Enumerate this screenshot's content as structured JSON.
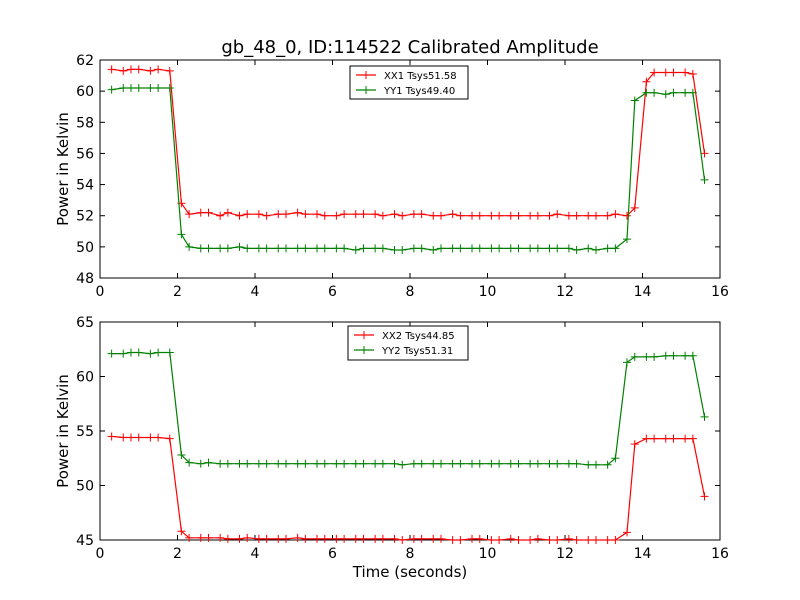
{
  "chart_data": [
    {
      "type": "line",
      "title": "gb_48_0, ID:114522 Calibrated Amplitude",
      "xlabel": "",
      "ylabel": "Power in Kelvin",
      "xlim": [
        0,
        16
      ],
      "ylim": [
        48,
        62
      ],
      "xticks": [
        "0",
        "2",
        "4",
        "6",
        "8",
        "10",
        "12",
        "14",
        "16"
      ],
      "yticks": [
        "48",
        "50",
        "52",
        "54",
        "56",
        "58",
        "60",
        "62"
      ],
      "grid": false,
      "legend_position": "top-center",
      "x": [
        0.3,
        0.6,
        0.8,
        1.0,
        1.3,
        1.5,
        1.8,
        2.1,
        2.3,
        2.6,
        2.8,
        3.1,
        3.3,
        3.6,
        3.8,
        4.1,
        4.3,
        4.6,
        4.8,
        5.1,
        5.3,
        5.6,
        5.8,
        6.1,
        6.3,
        6.6,
        6.8,
        7.1,
        7.3,
        7.6,
        7.8,
        8.1,
        8.3,
        8.6,
        8.8,
        9.1,
        9.3,
        9.6,
        9.8,
        10.1,
        10.3,
        10.6,
        10.8,
        11.1,
        11.3,
        11.6,
        11.8,
        12.1,
        12.3,
        12.6,
        12.8,
        13.1,
        13.3,
        13.6,
        13.8,
        14.1,
        14.3,
        14.6,
        14.8,
        15.1,
        15.3,
        15.6
      ],
      "series": [
        {
          "name": "XX1 Tsys51.58",
          "color": "#ff0000",
          "values": [
            61.4,
            61.3,
            61.4,
            61.4,
            61.3,
            61.4,
            61.3,
            52.8,
            52.1,
            52.2,
            52.2,
            52.0,
            52.2,
            52.0,
            52.1,
            52.1,
            52.0,
            52.1,
            52.1,
            52.2,
            52.1,
            52.1,
            52.0,
            52.0,
            52.1,
            52.1,
            52.1,
            52.1,
            52.0,
            52.1,
            52.0,
            52.1,
            52.1,
            52.0,
            52.0,
            52.1,
            52.0,
            52.0,
            52.0,
            52.0,
            52.0,
            52.0,
            52.0,
            52.0,
            52.0,
            52.0,
            52.1,
            52.0,
            52.0,
            52.0,
            52.0,
            52.0,
            52.1,
            52.0,
            52.5,
            60.6,
            61.2,
            61.2,
            61.2,
            61.2,
            61.1,
            56.0
          ]
        },
        {
          "name": "YY1 Tsys49.40",
          "color": "#008000",
          "values": [
            60.1,
            60.2,
            60.2,
            60.2,
            60.2,
            60.2,
            60.2,
            50.8,
            50.0,
            49.9,
            49.9,
            49.9,
            49.9,
            50.0,
            49.9,
            49.9,
            49.9,
            49.9,
            49.9,
            49.9,
            49.9,
            49.9,
            49.9,
            49.9,
            49.9,
            49.8,
            49.9,
            49.9,
            49.9,
            49.8,
            49.8,
            49.9,
            49.9,
            49.8,
            49.9,
            49.9,
            49.9,
            49.9,
            49.9,
            49.9,
            49.9,
            49.9,
            49.9,
            49.9,
            49.9,
            49.9,
            49.9,
            49.9,
            49.8,
            49.9,
            49.8,
            49.9,
            49.9,
            50.5,
            59.4,
            59.9,
            59.9,
            59.8,
            59.9,
            59.9,
            59.9,
            54.3
          ]
        }
      ]
    },
    {
      "type": "line",
      "title": "",
      "xlabel": "Time (seconds)",
      "ylabel": "Power in Kelvin",
      "xlim": [
        0,
        16
      ],
      "ylim": [
        45,
        65
      ],
      "xticks": [
        "0",
        "2",
        "4",
        "6",
        "8",
        "10",
        "12",
        "14",
        "16"
      ],
      "yticks": [
        "45",
        "50",
        "55",
        "60",
        "65"
      ],
      "grid": false,
      "legend_position": "top-center",
      "x": [
        0.3,
        0.6,
        0.8,
        1.0,
        1.3,
        1.5,
        1.8,
        2.1,
        2.3,
        2.6,
        2.8,
        3.1,
        3.3,
        3.6,
        3.8,
        4.1,
        4.3,
        4.6,
        4.8,
        5.1,
        5.3,
        5.6,
        5.8,
        6.1,
        6.3,
        6.6,
        6.8,
        7.1,
        7.3,
        7.6,
        7.8,
        8.1,
        8.3,
        8.6,
        8.8,
        9.1,
        9.3,
        9.6,
        9.8,
        10.1,
        10.3,
        10.6,
        10.8,
        11.1,
        11.3,
        11.6,
        11.8,
        12.1,
        12.3,
        12.6,
        12.8,
        13.1,
        13.3,
        13.6,
        13.8,
        14.1,
        14.3,
        14.6,
        14.8,
        15.1,
        15.3,
        15.6
      ],
      "series": [
        {
          "name": "XX2 Tsys44.85",
          "color": "#ff0000",
          "values": [
            54.5,
            54.4,
            54.4,
            54.4,
            54.4,
            54.4,
            54.3,
            45.8,
            45.2,
            45.2,
            45.2,
            45.2,
            45.1,
            45.1,
            45.2,
            45.1,
            45.1,
            45.1,
            45.1,
            45.2,
            45.1,
            45.1,
            45.1,
            45.1,
            45.1,
            45.1,
            45.1,
            45.1,
            45.1,
            45.1,
            45.0,
            45.1,
            45.1,
            45.1,
            45.1,
            45.0,
            45.0,
            45.1,
            45.1,
            45.0,
            45.0,
            45.1,
            45.0,
            45.0,
            45.1,
            45.0,
            45.0,
            45.1,
            45.0,
            45.0,
            45.0,
            45.0,
            45.0,
            45.7,
            53.8,
            54.3,
            54.3,
            54.3,
            54.3,
            54.3,
            54.3,
            49.0
          ]
        },
        {
          "name": "YY2 Tsys51.31",
          "color": "#008000",
          "values": [
            62.1,
            62.1,
            62.2,
            62.2,
            62.1,
            62.2,
            62.2,
            52.8,
            52.1,
            52.0,
            52.1,
            52.0,
            52.0,
            52.0,
            52.0,
            52.0,
            52.0,
            52.0,
            52.0,
            52.0,
            52.0,
            52.0,
            52.0,
            52.0,
            52.0,
            52.0,
            52.0,
            52.0,
            52.0,
            52.0,
            51.9,
            52.0,
            52.0,
            52.0,
            52.0,
            52.0,
            52.0,
            52.0,
            52.0,
            52.0,
            52.0,
            52.0,
            52.0,
            52.0,
            52.0,
            52.0,
            52.0,
            52.0,
            52.0,
            51.9,
            51.9,
            51.9,
            52.5,
            61.3,
            61.8,
            61.8,
            61.8,
            61.9,
            61.9,
            61.9,
            61.9,
            56.3
          ]
        }
      ]
    }
  ]
}
